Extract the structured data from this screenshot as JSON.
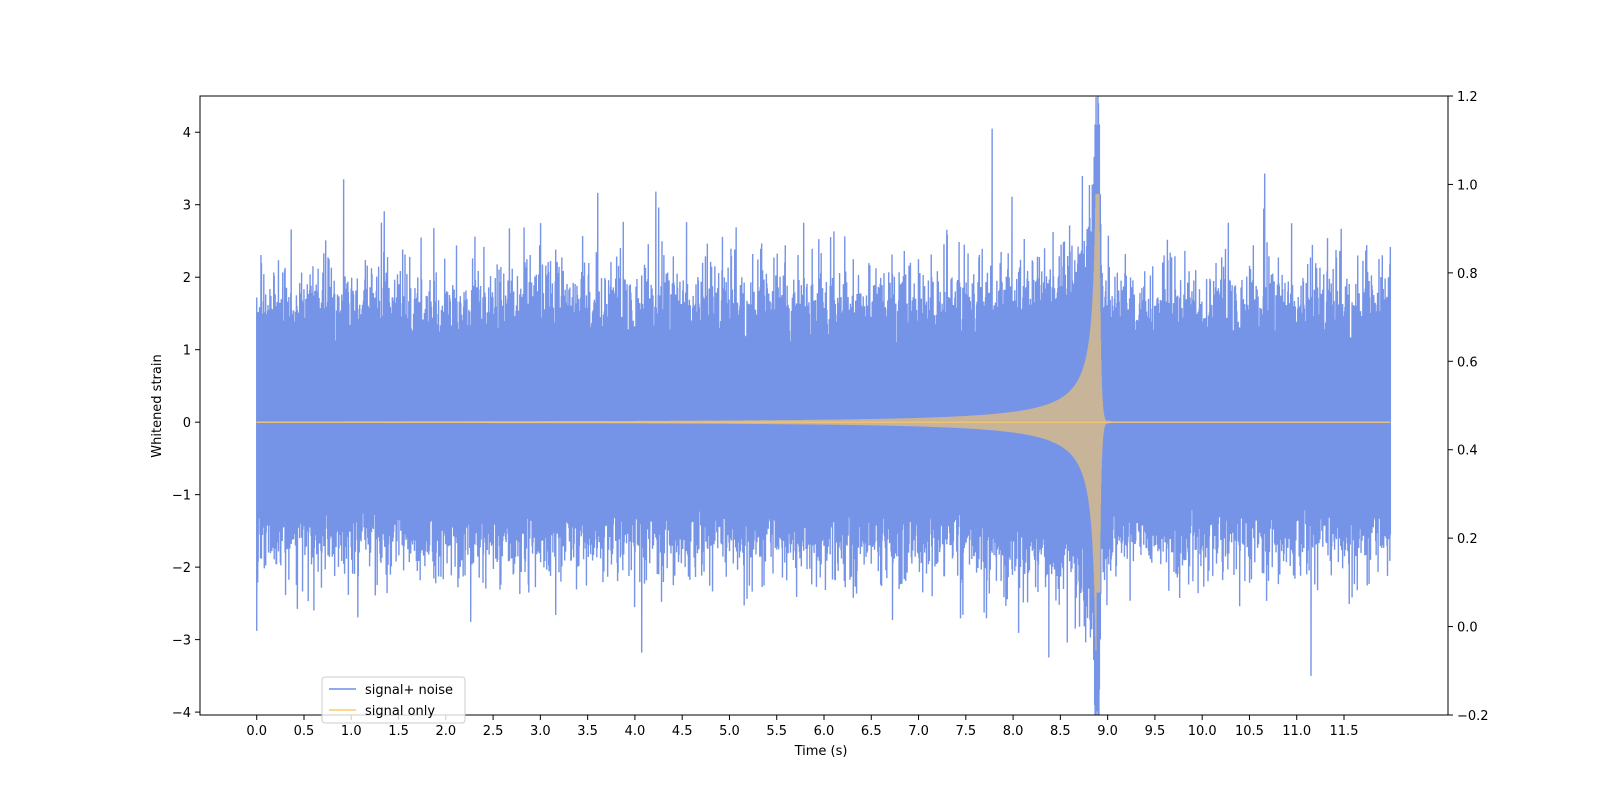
{
  "chart_data": {
    "type": "line",
    "xlabel": "Time (s)",
    "ylabel": "Whitened strain",
    "xlim": [
      -0.6,
      12.6
    ],
    "ylim": [
      -4.04,
      4.5
    ],
    "y2lim": [
      -0.2,
      1.2
    ],
    "x_ticks": [
      0.0,
      0.5,
      1.0,
      1.5,
      2.0,
      2.5,
      3.0,
      3.5,
      4.0,
      4.5,
      5.0,
      5.5,
      6.0,
      6.5,
      7.0,
      7.5,
      8.0,
      8.5,
      9.0,
      9.5,
      10.0,
      10.5,
      11.0,
      11.5
    ],
    "x_tick_labels": [
      "0.0",
      "0.5",
      "1.0",
      "1.5",
      "2.0",
      "2.5",
      "3.0",
      "3.5",
      "4.0",
      "4.5",
      "5.0",
      "5.5",
      "6.0",
      "6.5",
      "7.0",
      "7.5",
      "8.0",
      "8.5",
      "9.0",
      "9.5",
      "10.0",
      "10.5",
      "11.0",
      "11.5"
    ],
    "y_ticks": [
      -4,
      -3,
      -2,
      -1,
      0,
      1,
      2,
      3,
      4
    ],
    "y_tick_labels": [
      "−4",
      "−3",
      "−2",
      "−1",
      "0",
      "1",
      "2",
      "3",
      "4"
    ],
    "y2_ticks": [
      -0.2,
      0.0,
      0.2,
      0.4,
      0.6,
      0.8,
      1.0,
      1.2
    ],
    "y2_tick_labels": [
      "−0.2",
      "0.0",
      "0.2",
      "0.4",
      "0.6",
      "0.8",
      "1.0",
      "1.2"
    ],
    "legend_position": "lower-left",
    "grid": false,
    "series": [
      {
        "name": "signal+ noise",
        "color": "#6f8ee6",
        "description_values": {
          "x_range": [
            0.0,
            11.99
          ],
          "typical_envelope": [
            -1.6,
            1.6
          ],
          "peaks": [
            {
              "x": 0.92,
              "y": 3.35
            },
            {
              "x": 4.22,
              "y": 3.18
            },
            {
              "x": 7.78,
              "y": 4.05
            },
            {
              "x": 8.89,
              "y": 4.1
            },
            {
              "x": 10.66,
              "y": 3.43
            },
            {
              "x": 8.89,
              "y": -3.65
            },
            {
              "x": 11.15,
              "y": -3.5
            },
            {
              "x": 4.07,
              "y": -3.18
            },
            {
              "x": 0.0,
              "y": -2.88
            }
          ]
        }
      },
      {
        "name": "signal only",
        "color": "#ffc966",
        "description_values": {
          "x_range": [
            0.0,
            11.99
          ],
          "merger_time": 8.9,
          "peak_amplitude": 3.15,
          "min_amplitude": -2.35
        }
      }
    ]
  }
}
